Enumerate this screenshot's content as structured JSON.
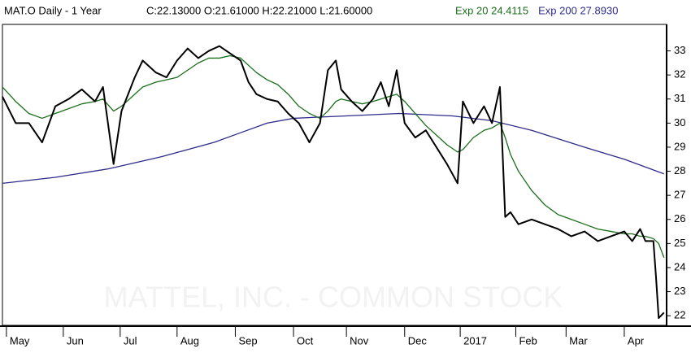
{
  "chart_data": {
    "type": "line",
    "title": "MAT.O Daily -  1 Year",
    "subtitle": "C:22.13000 O:21.61000 H:22.21000 L:21.60000",
    "watermark": "MATTEL, INC. - COMMON STOCK",
    "x": [
      0,
      5,
      10,
      15,
      20,
      25,
      30,
      35,
      38,
      42,
      45,
      50,
      53,
      58,
      62,
      66,
      70,
      74,
      78,
      82,
      86,
      90,
      93,
      96,
      100,
      104,
      108,
      112,
      116,
      120,
      123,
      126,
      128,
      132,
      136,
      140,
      143,
      146,
      149,
      152,
      156,
      160,
      164,
      168,
      172,
      174,
      178,
      182,
      185,
      188,
      190,
      192,
      195,
      200,
      205,
      210,
      215,
      220,
      225,
      230,
      235,
      238,
      241,
      243,
      246,
      247,
      248,
      250
    ],
    "series": [
      {
        "color": "#000000",
        "values": [
          31.1,
          30.0,
          30.0,
          29.2,
          30.7,
          31.0,
          31.4,
          30.9,
          31.5,
          28.3,
          30.5,
          31.9,
          32.6,
          32.1,
          31.9,
          32.6,
          33.1,
          32.7,
          33.0,
          33.2,
          32.9,
          32.6,
          31.7,
          31.2,
          31.0,
          30.9,
          30.4,
          30.0,
          29.2,
          30.0,
          32.2,
          32.6,
          31.4,
          30.9,
          30.5,
          31.0,
          31.7,
          30.7,
          32.2,
          30.0,
          29.4,
          29.7,
          29.0,
          28.3,
          27.5,
          30.9,
          30.0,
          30.7,
          30.0,
          31.5,
          26.1,
          26.3,
          25.8,
          26.0,
          25.8,
          25.6,
          25.3,
          25.5,
          25.1,
          25.3,
          25.5,
          25.1,
          25.6,
          25.1,
          25.1,
          23.6,
          21.9,
          22.13
        ]
      },
      {
        "name": "Exp 20 24.4115",
        "color": "#1a6e1a",
        "values": [
          31.5,
          30.9,
          30.4,
          30.2,
          30.4,
          30.6,
          30.8,
          30.9,
          31.0,
          30.5,
          30.7,
          31.2,
          31.5,
          31.7,
          31.8,
          31.9,
          32.2,
          32.5,
          32.7,
          32.7,
          32.8,
          32.7,
          32.4,
          32.1,
          31.8,
          31.6,
          31.2,
          30.7,
          30.4,
          30.2,
          30.5,
          30.9,
          31.0,
          30.9,
          30.8,
          30.9,
          31.0,
          31.1,
          31.2,
          30.9,
          30.4,
          29.9,
          29.5,
          29.1,
          28.8,
          28.9,
          29.4,
          29.7,
          29.8,
          30.0,
          29.4,
          28.7,
          28.0,
          27.2,
          26.6,
          26.2,
          26.0,
          25.8,
          25.6,
          25.5,
          25.4,
          25.4,
          25.3,
          25.3,
          25.2,
          25.1,
          25.0,
          24.4115
        ]
      },
      {
        "name": "Exp 200 27.8930",
        "color": "#2e2a8a",
        "x": [
          0,
          20,
          40,
          60,
          80,
          90,
          100,
          110,
          130,
          150,
          170,
          185,
          200,
          220,
          235,
          250
        ],
        "values": [
          27.5,
          27.75,
          28.1,
          28.6,
          29.2,
          29.6,
          30.0,
          30.2,
          30.3,
          30.4,
          30.3,
          30.1,
          29.7,
          29.0,
          28.5,
          27.893
        ]
      }
    ],
    "xlim": [
      0,
      251
    ],
    "xticks": [
      {
        "value": 1.5,
        "label": "May"
      },
      {
        "value": 23,
        "label": "Jun"
      },
      {
        "value": 44.5,
        "label": "Jul"
      },
      {
        "value": 66,
        "label": "Aug"
      },
      {
        "value": 88,
        "label": "Sep"
      },
      {
        "value": 110,
        "label": "Oct"
      },
      {
        "value": 130,
        "label": "Nov"
      },
      {
        "value": 152,
        "label": "Dec"
      },
      {
        "value": 173,
        "label": "2017"
      },
      {
        "value": 194,
        "label": "Feb"
      },
      {
        "value": 213,
        "label": "Mar"
      },
      {
        "value": 235,
        "label": "Apr"
      }
    ],
    "ylim": [
      21.6,
      34.1
    ],
    "yticks": [
      22,
      23,
      24,
      25,
      26,
      27,
      28,
      29,
      30,
      31,
      32,
      33
    ],
    "grid": false
  }
}
